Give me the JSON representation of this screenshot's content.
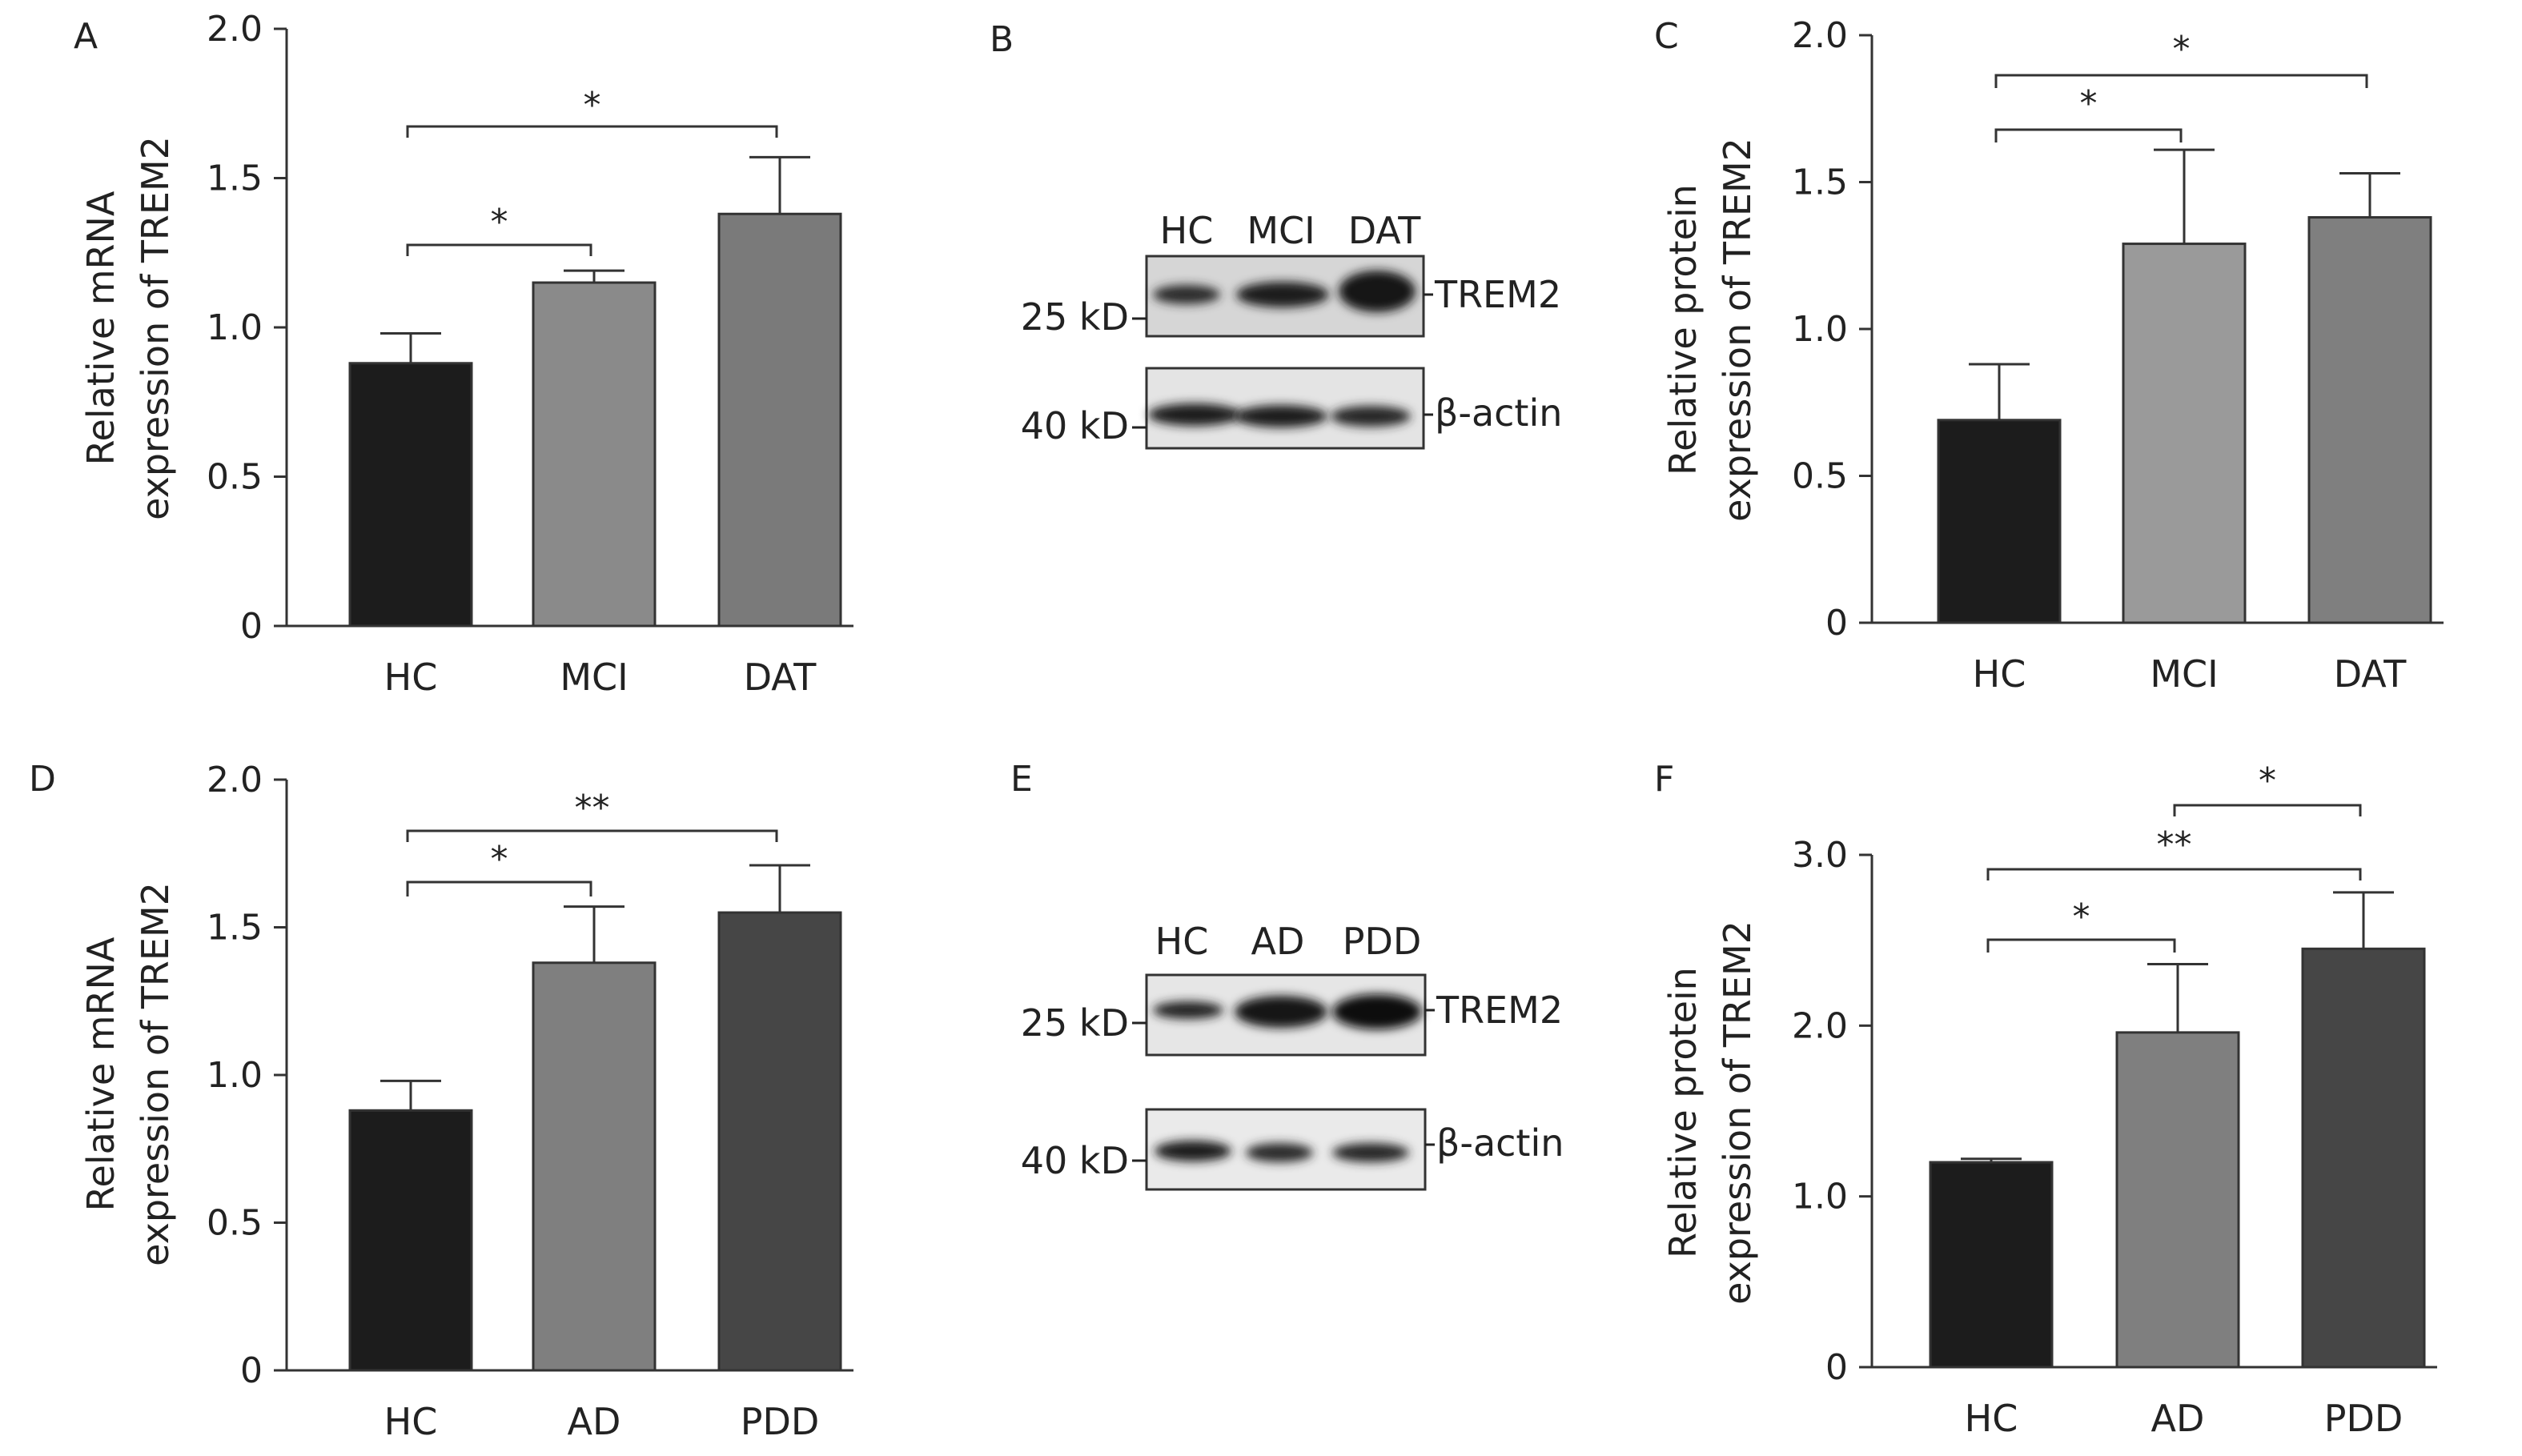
{
  "panels": {
    "A": {
      "letter": "A"
    },
    "B": {
      "letter": "B"
    },
    "C": {
      "letter": "C"
    },
    "D": {
      "letter": "D"
    },
    "E": {
      "letter": "E"
    },
    "F": {
      "letter": "F"
    }
  },
  "chart_data": [
    {
      "panel": "A",
      "type": "bar",
      "categories": [
        "HC",
        "MCI",
        "DAT"
      ],
      "values": [
        0.88,
        1.15,
        1.38
      ],
      "errors": [
        0.1,
        0.04,
        0.19
      ],
      "colors": [
        "#1c1c1c",
        "#8a8a8a",
        "#7a7a7a"
      ],
      "ylabel": [
        "Relative mRNA",
        "expression of TREM2"
      ],
      "ylim": [
        0,
        2.0
      ],
      "yticks": [
        "0",
        "0.5",
        "1.0",
        "1.5",
        "2.0"
      ],
      "significance": [
        {
          "from": 0,
          "to": 1,
          "label": "*"
        },
        {
          "from": 0,
          "to": 2,
          "label": "*"
        }
      ]
    },
    {
      "panel": "C",
      "type": "bar",
      "categories": [
        "HC",
        "MCI",
        "DAT"
      ],
      "values": [
        0.69,
        1.29,
        1.38
      ],
      "errors": [
        0.19,
        0.32,
        0.15
      ],
      "colors": [
        "#1c1c1c",
        "#9a9a9a",
        "#7f7f7f"
      ],
      "ylabel": [
        "Relative protein",
        "expression of TREM2"
      ],
      "ylim": [
        0,
        2.0
      ],
      "yticks": [
        "0",
        "0.5",
        "1.0",
        "1.5",
        "2.0"
      ],
      "significance": [
        {
          "from": 0,
          "to": 1,
          "label": "*"
        },
        {
          "from": 0,
          "to": 2,
          "label": "*"
        }
      ]
    },
    {
      "panel": "D",
      "type": "bar",
      "categories": [
        "HC",
        "AD",
        "PDD"
      ],
      "values": [
        0.88,
        1.38,
        1.55
      ],
      "errors": [
        0.1,
        0.19,
        0.16
      ],
      "colors": [
        "#1c1c1c",
        "#7f7f7f",
        "#464646"
      ],
      "ylabel": [
        "Relative mRNA",
        "expression of TREM2"
      ],
      "ylim": [
        0,
        2.0
      ],
      "yticks": [
        "0",
        "0.5",
        "1.0",
        "1.5",
        "2.0"
      ],
      "significance": [
        {
          "from": 0,
          "to": 1,
          "label": "*"
        },
        {
          "from": 0,
          "to": 2,
          "label": "**"
        }
      ]
    },
    {
      "panel": "F",
      "type": "bar",
      "categories": [
        "HC",
        "AD",
        "PDD"
      ],
      "values": [
        1.2,
        1.96,
        2.45
      ],
      "errors": [
        0.02,
        0.4,
        0.33
      ],
      "colors": [
        "#1c1c1c",
        "#7f7f7f",
        "#464646"
      ],
      "ylabel": [
        "Relative protein",
        "expression of TREM2"
      ],
      "ylim": [
        0,
        3.0
      ],
      "yticks": [
        "0",
        "1.0",
        "2.0",
        "3.0"
      ],
      "significance": [
        {
          "from": 0,
          "to": 1,
          "label": "*"
        },
        {
          "from": 0,
          "to": 2,
          "label": "**"
        },
        {
          "from": 1,
          "to": 2,
          "label": "*"
        }
      ]
    }
  ],
  "blots": [
    {
      "panel": "B",
      "lanes": [
        "HC",
        "MCI",
        "DAT"
      ],
      "rows": [
        {
          "marker": "25 kD",
          "protein": "TREM2"
        },
        {
          "marker": "40 kD",
          "protein": "β-actin"
        }
      ]
    },
    {
      "panel": "E",
      "lanes": [
        "HC",
        "AD",
        "PDD"
      ],
      "rows": [
        {
          "marker": "25 kD",
          "protein": "TREM2"
        },
        {
          "marker": "40 kD",
          "protein": "β-actin"
        }
      ]
    }
  ]
}
